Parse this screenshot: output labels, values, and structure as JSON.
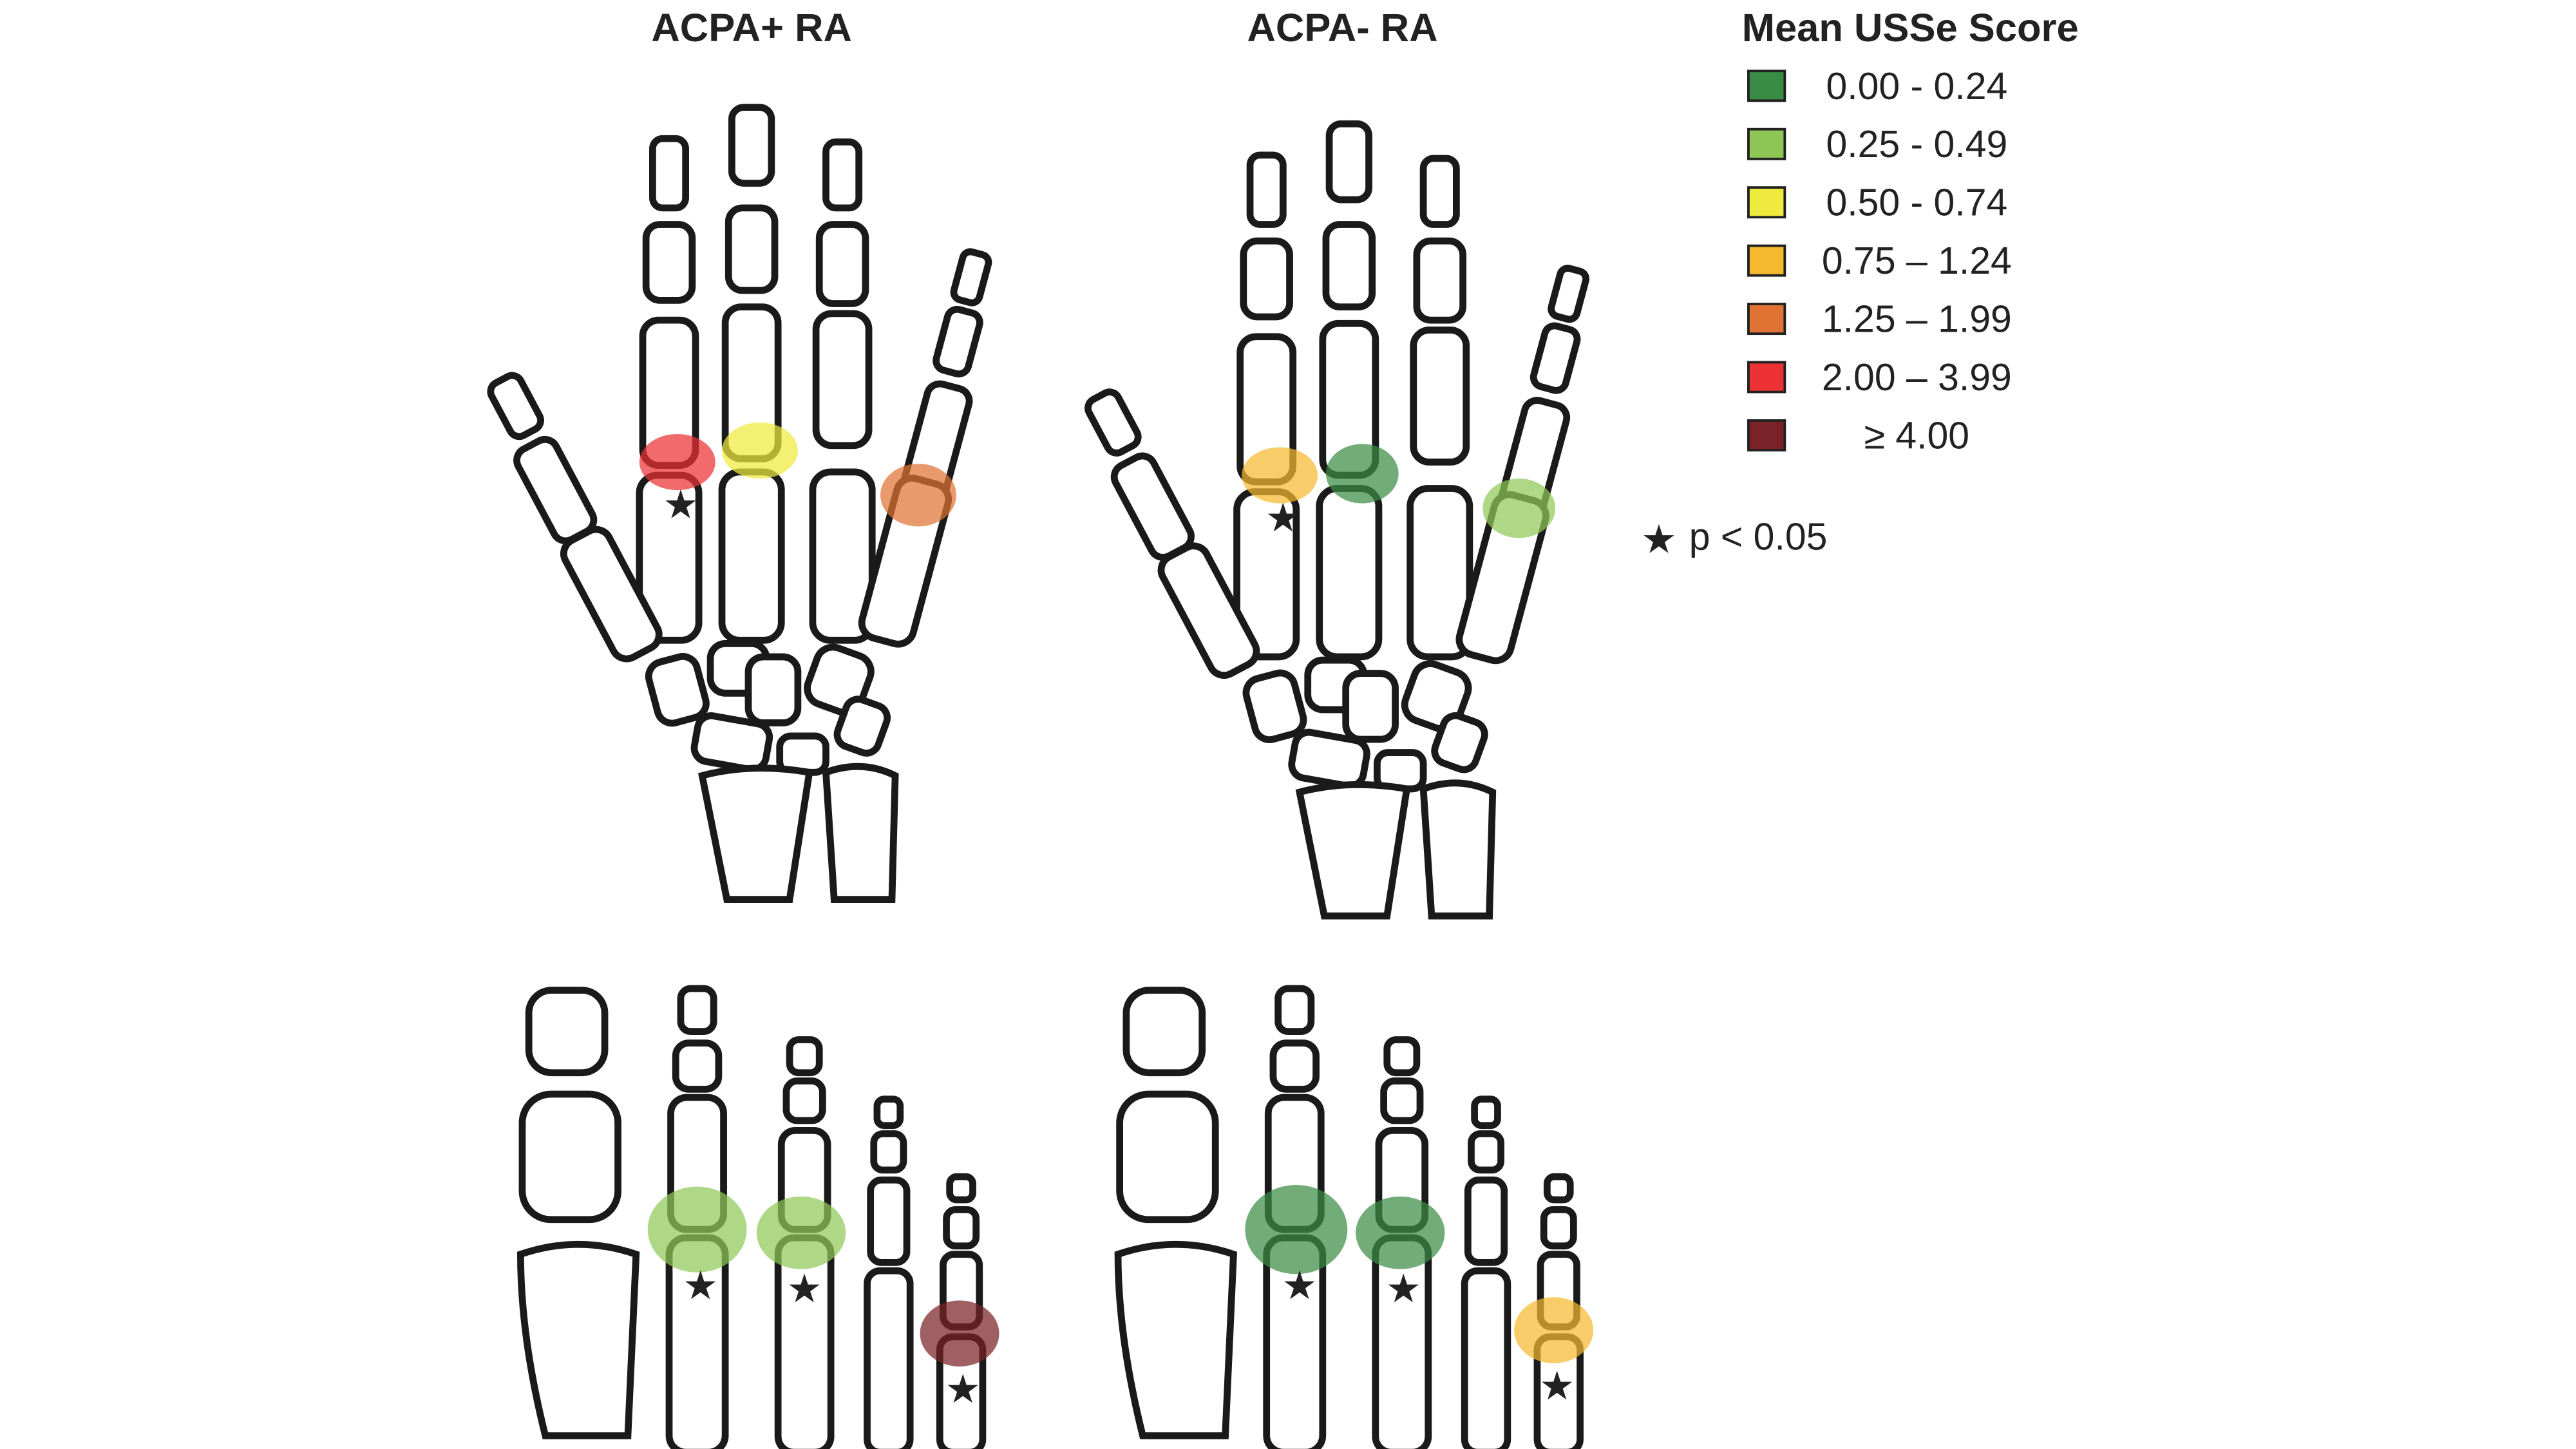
{
  "panels": [
    {
      "title": "ACPA+ RA"
    },
    {
      "title": "ACPA- RA"
    }
  ],
  "legend": {
    "title": "Mean USSe Score",
    "items": [
      {
        "label": "0.00 - 0.24",
        "color": "#3a8c45"
      },
      {
        "label": "0.25 - 0.49",
        "color": "#8fc757"
      },
      {
        "label": "0.50 - 0.74",
        "color": "#eeea3e"
      },
      {
        "label": "0.75 – 1.24",
        "color": "#f5b82e"
      },
      {
        "label": "1.25 – 1.99",
        "color": "#e07334"
      },
      {
        "label": "2.00 – 3.99",
        "color": "#ec3234"
      },
      {
        "label": "≥ 4.00",
        "color": "#7a2228"
      }
    ],
    "significance": {
      "symbol": "★",
      "label": "p < 0.05"
    }
  },
  "joints": [
    {
      "panel": "ACPA+ RA",
      "region": "hand",
      "joint": "MCP2",
      "score_range": "2.00 – 3.99",
      "significant": true
    },
    {
      "panel": "ACPA+ RA",
      "region": "hand",
      "joint": "MCP3",
      "score_range": "0.50 - 0.74",
      "significant": false
    },
    {
      "panel": "ACPA+ RA",
      "region": "hand",
      "joint": "PIP5",
      "score_range": "1.25 – 1.99",
      "significant": false
    },
    {
      "panel": "ACPA- RA",
      "region": "hand",
      "joint": "MCP2",
      "score_range": "0.75 – 1.24",
      "significant": true
    },
    {
      "panel": "ACPA- RA",
      "region": "hand",
      "joint": "MCP3",
      "score_range": "0.00 - 0.24",
      "significant": false
    },
    {
      "panel": "ACPA- RA",
      "region": "hand",
      "joint": "PIP5",
      "score_range": "0.25 - 0.49",
      "significant": false
    },
    {
      "panel": "ACPA+ RA",
      "region": "foot",
      "joint": "MTP2",
      "score_range": "0.25 - 0.49",
      "significant": true
    },
    {
      "panel": "ACPA+ RA",
      "region": "foot",
      "joint": "MTP3",
      "score_range": "0.25 - 0.49",
      "significant": true
    },
    {
      "panel": "ACPA+ RA",
      "region": "foot",
      "joint": "MTP5",
      "score_range": "≥ 4.00",
      "significant": true
    },
    {
      "panel": "ACPA- RA",
      "region": "foot",
      "joint": "MTP2",
      "score_range": "0.00 - 0.24",
      "significant": true
    },
    {
      "panel": "ACPA- RA",
      "region": "foot",
      "joint": "MTP3",
      "score_range": "0.00 - 0.24",
      "significant": true
    },
    {
      "panel": "ACPA- RA",
      "region": "foot",
      "joint": "MTP5",
      "score_range": "0.75 – 1.24",
      "significant": true
    }
  ]
}
